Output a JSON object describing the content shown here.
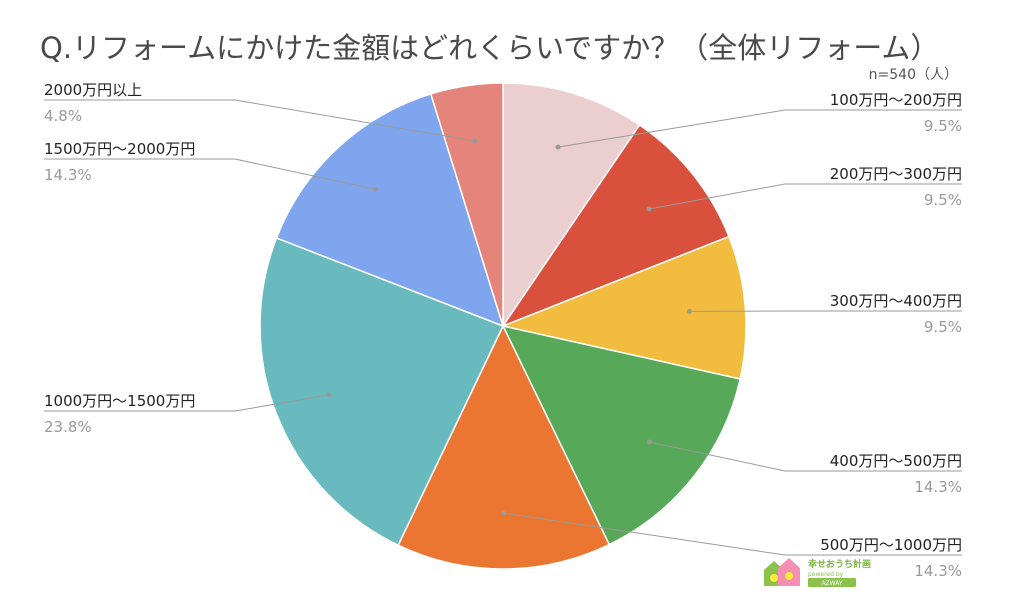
{
  "chart_data": {
    "type": "pie",
    "title": "Q.リフォームにかけた金額はどれくらいですか？（全体リフォーム）",
    "note": "n=540（人）",
    "slices": [
      {
        "label": "100万円～200万円",
        "value": 9.5,
        "value_label": "9.5%",
        "color": "#ebcfd0"
      },
      {
        "label": "200万円～300万円",
        "value": 9.5,
        "value_label": "9.5%",
        "color": "#d9503d"
      },
      {
        "label": "300万円～400万円",
        "value": 9.5,
        "value_label": "9.5%",
        "color": "#f2bd3f"
      },
      {
        "label": "400万円～500万円",
        "value": 14.3,
        "value_label": "14.3%",
        "color": "#58a85a"
      },
      {
        "label": "500万円～1000万円",
        "value": 14.3,
        "value_label": "14.3%",
        "color": "#eb7632"
      },
      {
        "label": "1000万円～1500万円",
        "value": 23.8,
        "value_label": "23.8%",
        "color": "#68babf"
      },
      {
        "label": "1500万円～2000万円",
        "value": 14.3,
        "value_label": "14.3%",
        "color": "#7ea5ee"
      },
      {
        "label": "2000万円以上",
        "value": 4.8,
        "value_label": "4.8%",
        "color": "#e4847a"
      }
    ],
    "legend": "none",
    "start": "top, clockwise"
  },
  "logo": {
    "line1": "幸せおうち計画",
    "line2": "powered by",
    "line3": "AZWAY"
  }
}
